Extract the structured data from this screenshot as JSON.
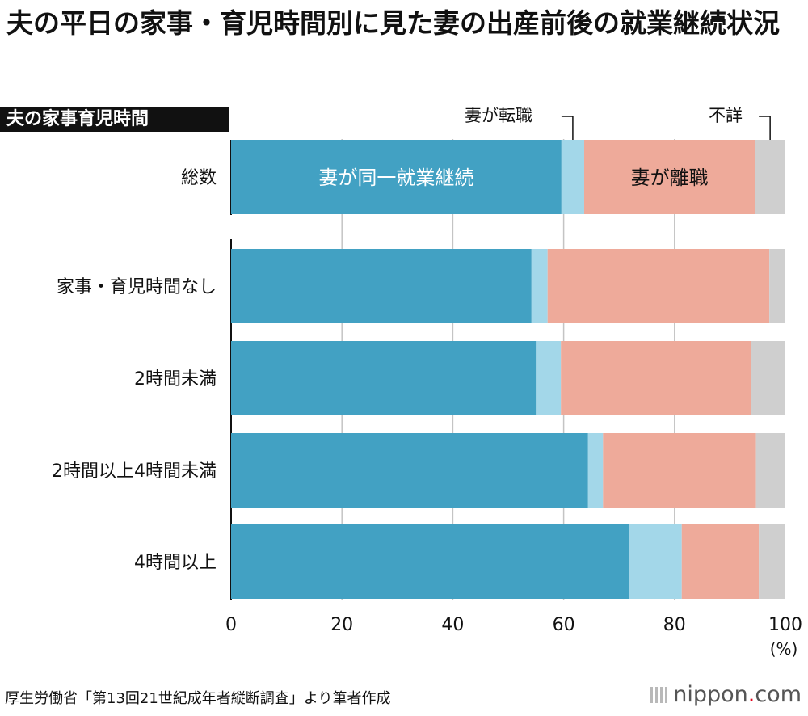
{
  "title": "夫の平日の家事・育児時間別に見た妻の出産前後の就業継続状況",
  "category_header": "夫の家事育児時間",
  "source": "厚生労働省「第13回21世紀成年者縦断調査」より筆者作成",
  "logo": {
    "main": "nippon",
    "dot": ".",
    "suffix": "com"
  },
  "colors": {
    "continue": "#42a1c3",
    "change": "#a3d7e9",
    "quit": "#eeaa9a",
    "unknown": "#cfcfcf",
    "grid": "#c4c4c4"
  },
  "chart_data": {
    "type": "bar",
    "orientation": "horizontal",
    "stacked": true,
    "categories": [
      "総数",
      "家事・育児時間なし",
      "2時間未満",
      "2時間以上4時間未満",
      "4時間以上"
    ],
    "series": [
      {
        "name": "妻が同一就業継続",
        "values": [
          59.6,
          54.2,
          55.0,
          64.4,
          71.9
        ]
      },
      {
        "name": "妻が転職",
        "values": [
          4.1,
          2.9,
          4.5,
          2.7,
          9.4
        ]
      },
      {
        "name": "妻が離職",
        "values": [
          30.8,
          40.0,
          34.3,
          27.6,
          13.9
        ]
      },
      {
        "name": "不詳",
        "values": [
          5.5,
          2.9,
          6.2,
          5.3,
          4.8
        ]
      }
    ],
    "xlim": [
      0,
      100
    ],
    "xticks": [
      "0",
      "20",
      "40",
      "60",
      "80",
      "100"
    ],
    "xunit": "(%)",
    "inbar_labels": [
      "妻が同一就業継続",
      "妻が離職"
    ],
    "callout_labels": [
      "妻が転職",
      "不詳"
    ],
    "grid": true
  }
}
